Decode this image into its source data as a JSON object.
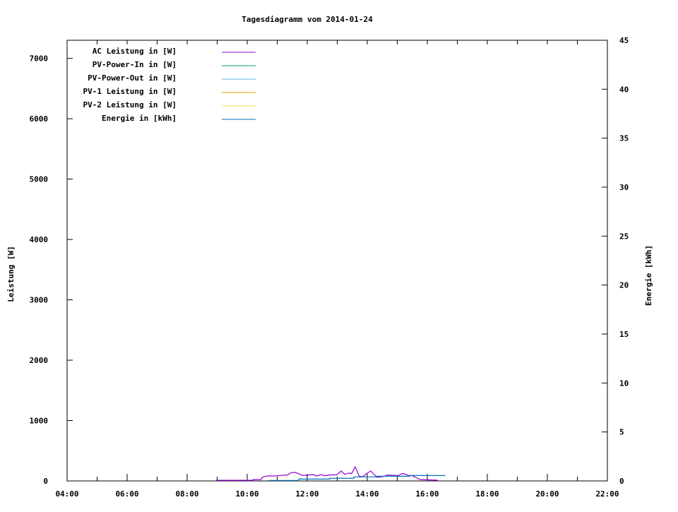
{
  "chart_data": {
    "type": "line",
    "title": "Tagesdiagramm vom 2014-01-24",
    "ylabel": "Leistung [W]",
    "y2label": "Energie [kWh]",
    "xlim": [
      "04:00",
      "22:00"
    ],
    "ylim": [
      0,
      7300
    ],
    "y2lim": [
      0,
      45
    ],
    "xticks": [
      "04:00",
      "06:00",
      "08:00",
      "10:00",
      "12:00",
      "14:00",
      "16:00",
      "18:00",
      "20:00",
      "22:00"
    ],
    "yticks": [
      0,
      1000,
      2000,
      3000,
      4000,
      5000,
      6000,
      7000
    ],
    "y2ticks": [
      0,
      5,
      10,
      15,
      20,
      25,
      30,
      35,
      40,
      45
    ],
    "grid": false,
    "legend_position": "top-left",
    "series": [
      {
        "name": "AC Leistung in [W]",
        "color": "#9400d3",
        "axis": "left",
        "x": [
          "08:58",
          "10:12",
          "10:12",
          "10:28",
          "10:30",
          "10:40",
          "10:56",
          "11:11",
          "11:20",
          "11:29",
          "11:36",
          "11:44",
          "11:49",
          "11:58",
          "12:12",
          "12:19",
          "12:28",
          "12:35",
          "12:45",
          "12:59",
          "13:08",
          "13:15",
          "13:22",
          "13:29",
          "13:36",
          "13:44",
          "13:51",
          "14:00",
          "14:07",
          "14:19",
          "14:31",
          "14:40",
          "14:52",
          "15:03",
          "15:08",
          "15:13",
          "15:22",
          "15:29",
          "15:39",
          "15:46",
          "16:21"
        ],
        "y": [
          10,
          10,
          22,
          22,
          62,
          82,
          82,
          94,
          98,
          140,
          140,
          117,
          94,
          94,
          105,
          82,
          105,
          86,
          98,
          102,
          164,
          109,
          129,
          125,
          234,
          78,
          70,
          129,
          164,
          62,
          70,
          98,
          94,
          90,
          117,
          121,
          90,
          90,
          51,
          23,
          12
        ]
      },
      {
        "name": "PV-Power-In in [W]",
        "color": "#009e73",
        "axis": "left",
        "x": [],
        "y": []
      },
      {
        "name": "PV-Power-Out in [W]",
        "color": "#56b4e9",
        "axis": "left",
        "x": [],
        "y": []
      },
      {
        "name": "PV-1 Leistung in [W]",
        "color": "#e69f00",
        "axis": "left",
        "x": [],
        "y": []
      },
      {
        "name": "PV-2 Leistung in [W]",
        "color": "#f0e442",
        "axis": "left",
        "x": [],
        "y": []
      },
      {
        "name": "Energie in [kWh]",
        "color": "#0072b2",
        "axis": "right",
        "step": true,
        "x": [
          "10:42",
          "11:43",
          "12:45",
          "13:33",
          "14:19",
          "15:25",
          "16:36"
        ],
        "y": [
          0.05,
          0.19,
          0.27,
          0.41,
          0.48,
          0.55,
          0.55
        ]
      }
    ]
  }
}
